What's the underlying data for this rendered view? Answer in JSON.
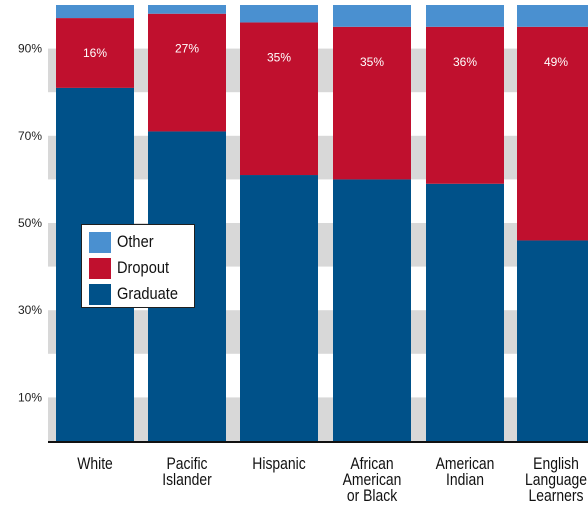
{
  "chart_data": {
    "type": "bar",
    "stacked": true,
    "categories": [
      [
        "White"
      ],
      [
        "Pacific",
        "Islander"
      ],
      [
        "Hispanic"
      ],
      [
        "African",
        "American",
        "or Black"
      ],
      [
        "American",
        "Indian"
      ],
      [
        "English",
        "Language",
        "Learners"
      ]
    ],
    "series": [
      {
        "name": "Graduate",
        "color": "#005189",
        "values": [
          81,
          71,
          61,
          60,
          59,
          46
        ]
      },
      {
        "name": "Dropout",
        "color": "#c0102e",
        "values": [
          16,
          27,
          35,
          35,
          36,
          49
        ]
      },
      {
        "name": "Other",
        "color": "#4a90d0",
        "values": [
          3,
          2,
          4,
          5,
          5,
          5
        ]
      }
    ],
    "data_labels": [
      "16%",
      "27%",
      "35%",
      "35%",
      "36%",
      "49%"
    ],
    "yticks": [
      "10%",
      "30%",
      "50%",
      "70%",
      "90%"
    ],
    "ytick_values": [
      10,
      30,
      50,
      70,
      90
    ],
    "ylim": [
      0,
      100
    ],
    "legend_position": "center-left",
    "band_color": "#d8d8d8",
    "legend": [
      {
        "label": "Other",
        "color": "#4a90d0"
      },
      {
        "label": "Dropout",
        "color": "#c0102e"
      },
      {
        "label": "Graduate",
        "color": "#005189"
      }
    ]
  }
}
